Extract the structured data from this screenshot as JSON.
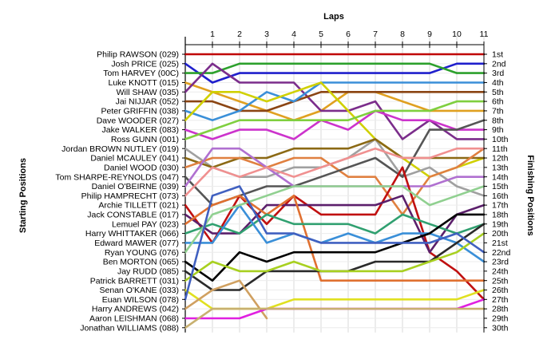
{
  "chart_data": {
    "type": "line",
    "title": "Laps",
    "xlabel": "Laps",
    "ylabel_left": "Starting Positions",
    "ylabel_right": "Finishing Positions",
    "x": [
      0,
      1,
      2,
      3,
      4,
      5,
      6,
      7,
      8,
      9,
      10,
      11
    ],
    "x_tick_labels": [
      "1",
      "2",
      "3",
      "4",
      "5",
      "6",
      "7",
      "8",
      "9",
      "10",
      "11"
    ],
    "starting_grid": [
      "Philip RAWSON (029)",
      "Josh PRICE (025)",
      "Tom HARVEY (00C)",
      "Luke KNOTT (015)",
      "Will SHAW (035)",
      "Jai NIJJAR (052)",
      "Peter GRIFFIN (038)",
      "Dave WOODER (027)",
      "Jake WALKER (083)",
      "Ross GUNN (001)",
      "Jordan BROWN NUTLEY (019)",
      "Daniel MCAULEY (041)",
      "Daniel WOOD (030)",
      "Tom SHARPE-REYNOLDS (047)",
      "Daniel O'BEIRNE (039)",
      "Philip HAMPRECHT (073)",
      "Archie TILLETT (021)",
      "Jack CONSTABLE (017)",
      "Lemuel PAY (023)",
      "Harry WHITTAKER (066)",
      "Edward MAWER (077)",
      "Ryan YOUNG (076)",
      "Ben MORTON (065)",
      "Jay RUDD (085)",
      "Patrick BARRETT (031)",
      "Senan O'KANE (033)",
      "Euan WILSON (078)",
      "Harry ANDREWS (042)",
      "Aaron LEISHMAN (068)",
      "Jonathan WILLIAMS (088)"
    ],
    "finishing_positions": [
      "1st",
      "2nd",
      "3rd",
      "4th",
      "5th",
      "6th",
      "7th",
      "8th",
      "9th",
      "10th",
      "11th",
      "12th",
      "13th",
      "14th",
      "15th",
      "16th",
      "17th",
      "18th",
      "19th",
      "20th",
      "21st",
      "22nd",
      "23rd",
      "24th",
      "25th",
      "26th",
      "27th",
      "28th",
      "29th",
      "30th"
    ],
    "series": [
      {
        "color": "#c00000",
        "values": [
          1,
          1,
          1,
          1,
          1,
          1,
          1,
          1,
          1,
          1,
          1,
          1
        ]
      },
      {
        "color": "#1f1fcc",
        "values": [
          2,
          4,
          3,
          3,
          3,
          3,
          3,
          3,
          3,
          3,
          2,
          2
        ]
      },
      {
        "color": "#2ca02c",
        "values": [
          3,
          3,
          2,
          2,
          2,
          2,
          2,
          2,
          2,
          2,
          3,
          3
        ]
      },
      {
        "color": "#e0a020",
        "values": [
          4,
          5,
          6,
          7,
          8,
          7,
          5,
          5,
          6,
          7,
          7,
          7
        ]
      },
      {
        "color": "#7b2d8b",
        "values": [
          5,
          2,
          4,
          4,
          4,
          7,
          7,
          6,
          10,
          8,
          10,
          10
        ]
      },
      {
        "color": "#8b4513",
        "values": [
          6,
          6,
          7,
          7,
          6,
          5,
          5,
          5,
          5,
          5,
          5,
          5
        ]
      },
      {
        "color": "#3a8fd8",
        "values": [
          7,
          8,
          7,
          5,
          6,
          4,
          4,
          4,
          4,
          4,
          4,
          4
        ]
      },
      {
        "color": "#d0d000",
        "values": [
          8,
          5,
          5,
          6,
          5,
          4,
          7,
          10,
          12,
          14,
          13,
          12
        ]
      },
      {
        "color": "#cc33cc",
        "values": [
          9,
          10,
          9,
          9,
          10,
          8,
          9,
          7,
          8,
          8,
          9,
          9
        ]
      },
      {
        "color": "#7fcf3f",
        "values": [
          10,
          9,
          8,
          8,
          8,
          8,
          8,
          7,
          7,
          7,
          6,
          6
        ]
      },
      {
        "color": "#a0a0a0",
        "values": [
          11,
          13,
          14,
          14,
          13,
          13,
          12,
          10,
          14,
          13,
          15,
          16
        ]
      },
      {
        "color": "#8b6914",
        "values": [
          12,
          13,
          12,
          12,
          11,
          11,
          11,
          10,
          12,
          12,
          12,
          12
        ]
      },
      {
        "color": "#e08040",
        "values": [
          13,
          12,
          12,
          13,
          12,
          12,
          14,
          14,
          18,
          14,
          13,
          11
        ]
      },
      {
        "color": "#555555",
        "values": [
          14,
          17,
          16,
          15,
          15,
          14,
          13,
          12,
          14,
          9,
          9,
          8
        ]
      },
      {
        "color": "#b070d0",
        "values": [
          15,
          11,
          11,
          13,
          15,
          15,
          15,
          15,
          15,
          15,
          14,
          14
        ]
      },
      {
        "color": "#f09090",
        "values": [
          16,
          13,
          14,
          13,
          14,
          13,
          12,
          11,
          12,
          12,
          11,
          11
        ]
      },
      {
        "color": "#c01010",
        "values": [
          17,
          21,
          16,
          19,
          16,
          18,
          18,
          18,
          13,
          22,
          24,
          27
        ]
      },
      {
        "color": "#5b1f6b",
        "values": [
          18,
          20,
          20,
          17,
          17,
          17,
          17,
          17,
          16,
          22,
          18,
          17
        ]
      },
      {
        "color": "#e07030",
        "values": [
          19,
          17,
          16,
          18,
          16,
          25,
          25,
          25,
          25,
          25,
          25,
          25
        ]
      },
      {
        "color": "#30a070",
        "values": [
          20,
          19,
          20,
          18,
          19,
          19,
          19,
          20,
          18,
          19,
          20,
          19
        ]
      },
      {
        "color": "#3a8fd8",
        "values": [
          21,
          21,
          17,
          21,
          20,
          21,
          20,
          21,
          20,
          20,
          21,
          23
        ]
      },
      {
        "color": "#90d090",
        "values": [
          22,
          18,
          17,
          16,
          15,
          15,
          15,
          15,
          15,
          17,
          16,
          15
        ]
      },
      {
        "color": "#000000",
        "values": [
          23,
          25,
          22,
          23,
          22,
          22,
          22,
          22,
          21,
          20,
          18,
          18
        ]
      },
      {
        "color": "#2a2a2a",
        "values": [
          24,
          26,
          26,
          24,
          24,
          24,
          24,
          23,
          23,
          23,
          21,
          19
        ]
      },
      {
        "color": "#a8d020",
        "values": [
          25,
          23,
          24,
          24,
          23,
          24,
          24,
          24,
          24,
          23,
          22,
          20
        ]
      },
      {
        "color": "#e0e020",
        "values": [
          26,
          28,
          28,
          28,
          27,
          27,
          27,
          27,
          27,
          27,
          27,
          26
        ]
      },
      {
        "color": "#4060c0",
        "values": [
          27,
          16,
          15,
          20,
          20,
          21,
          21,
          21,
          21,
          21,
          20,
          22
        ]
      },
      {
        "color": "#d0a060",
        "values": [
          28,
          26,
          25,
          29,
          null,
          null,
          null,
          null,
          null,
          null,
          null,
          null
        ]
      },
      {
        "color": "#e020e0",
        "values": [
          29,
          29,
          29,
          28,
          28,
          28,
          28,
          28,
          28,
          28,
          28,
          27
        ]
      },
      {
        "color": "#c8b070",
        "values": [
          30,
          28,
          28,
          28,
          28,
          28,
          28,
          28,
          28,
          28,
          28,
          28
        ]
      }
    ],
    "grid": true
  }
}
